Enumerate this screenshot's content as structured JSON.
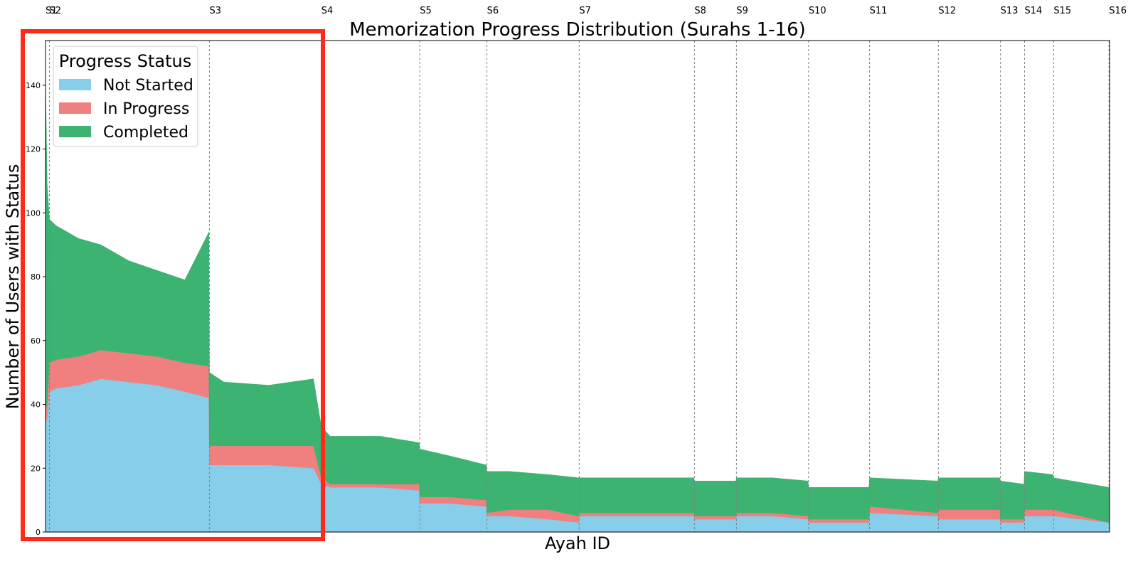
{
  "chart_data": {
    "type": "area",
    "stacked": true,
    "title": "Memorization Progress Distribution (Surahs 1-16)",
    "xlabel": "Ayah ID",
    "ylabel": "Number of Users with Status",
    "ylim": [
      0,
      154
    ],
    "yticks": [
      0,
      20,
      40,
      60,
      80,
      100,
      120,
      140
    ],
    "xlim": [
      1,
      1903
    ],
    "grid": false,
    "legend": {
      "title": "Progress Status",
      "placement": "top-left",
      "entries": [
        "Not Started",
        "In Progress",
        "Completed"
      ]
    },
    "surah_markers": [
      {
        "label": "S1",
        "ayah": 1
      },
      {
        "label": "S2",
        "ayah": 8
      },
      {
        "label": "S3",
        "ayah": 294
      },
      {
        "label": "S4",
        "ayah": 494
      },
      {
        "label": "S5",
        "ayah": 670
      },
      {
        "label": "S6",
        "ayah": 790
      },
      {
        "label": "S7",
        "ayah": 955
      },
      {
        "label": "S8",
        "ayah": 1161
      },
      {
        "label": "S9",
        "ayah": 1236
      },
      {
        "label": "S10",
        "ayah": 1365
      },
      {
        "label": "S11",
        "ayah": 1474
      },
      {
        "label": "S12",
        "ayah": 1597
      },
      {
        "label": "S13",
        "ayah": 1708
      },
      {
        "label": "S14",
        "ayah": 1751
      },
      {
        "label": "S15",
        "ayah": 1803
      },
      {
        "label": "S16",
        "ayah": 1902
      }
    ],
    "series": [
      {
        "name": "Not Started",
        "color": "#87ceeb"
      },
      {
        "name": "In Progress",
        "color": "#f08080"
      },
      {
        "name": "Completed",
        "color": "#3cb371"
      }
    ],
    "x": [
      1,
      4,
      8,
      20,
      60,
      100,
      150,
      200,
      250,
      293,
      294,
      320,
      400,
      480,
      494,
      510,
      600,
      669,
      670,
      720,
      789,
      790,
      830,
      900,
      954,
      955,
      1050,
      1160,
      1161,
      1235,
      1236,
      1300,
      1364,
      1365,
      1473,
      1474,
      1596,
      1597,
      1707,
      1708,
      1750,
      1751,
      1802,
      1803,
      1901,
      1903
    ],
    "values": {
      "Not Started": [
        34,
        36,
        44,
        45,
        46,
        48,
        47,
        46,
        44,
        42,
        21,
        21,
        21,
        20,
        15,
        14,
        14,
        13,
        9,
        9,
        8,
        5,
        5,
        4,
        3,
        5,
        5,
        5,
        4,
        4,
        5,
        5,
        4,
        3,
        3,
        6,
        5,
        4,
        4,
        3,
        3,
        5,
        5,
        5,
        3,
        3
      ],
      "In Progress": [
        4,
        5,
        9,
        9,
        9,
        9,
        9,
        9,
        9,
        10,
        6,
        6,
        6,
        7,
        2,
        1,
        1,
        2,
        2,
        2,
        2,
        1,
        2,
        3,
        2,
        1,
        1,
        1,
        1,
        1,
        1,
        1,
        1,
        1,
        1,
        2,
        1,
        3,
        3,
        1,
        1,
        2,
        2,
        2,
        0,
        0
      ],
      "Completed": [
        104,
        68,
        45,
        42,
        37,
        33,
        29,
        27,
        26,
        42,
        23,
        20,
        19,
        21,
        16,
        15,
        15,
        13,
        15,
        13,
        11,
        13,
        12,
        11,
        12,
        11,
        11,
        11,
        11,
        11,
        11,
        11,
        11,
        10,
        10,
        9,
        10,
        10,
        10,
        12,
        11,
        12,
        11,
        10,
        11,
        11
      ]
    }
  }
}
